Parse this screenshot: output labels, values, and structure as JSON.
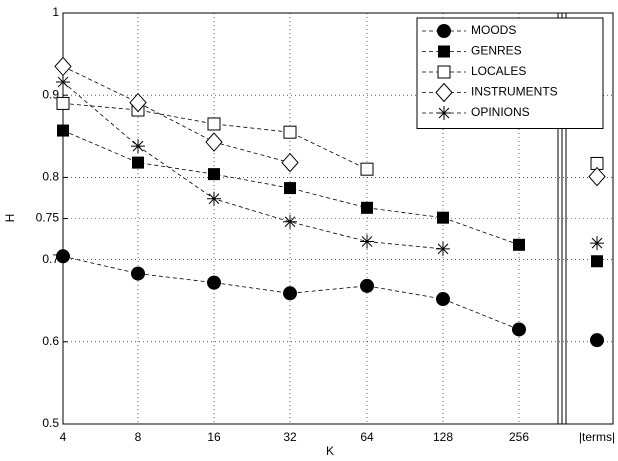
{
  "chart_data": {
    "type": "line",
    "x_label": "K",
    "y_label": "H",
    "categories": [
      "4",
      "8",
      "16",
      "32",
      "64",
      "128",
      "256",
      "|terms|"
    ],
    "ylim": [
      0.5,
      1
    ],
    "yticks": [
      {
        "value": 0.5,
        "label": "0.5"
      },
      {
        "value": 0.6,
        "label": "0.6"
      },
      {
        "value": 0.7,
        "label": "0.7"
      },
      {
        "value": 0.75,
        "label": "0.75"
      },
      {
        "value": 0.8,
        "label": "0.8"
      },
      {
        "value": 0.9,
        "label": "0.9"
      },
      1
    ],
    "grid": true,
    "legend": "top-right",
    "series": [
      {
        "name": "MOODS",
        "marker": "filled-circle",
        "color": "#000000",
        "values": [
          0.704,
          0.683,
          0.672,
          0.659,
          0.668,
          0.652,
          0.615,
          0.602
        ]
      },
      {
        "name": "GENRES",
        "marker": "filled-square",
        "color": "#000000",
        "values": [
          0.857,
          0.818,
          0.804,
          0.787,
          0.763,
          0.751,
          0.718,
          0.698
        ]
      },
      {
        "name": "LOCALES",
        "marker": "open-square",
        "color": "#000000",
        "values": [
          0.89,
          0.882,
          0.865,
          0.855,
          0.81,
          null,
          null,
          0.817
        ]
      },
      {
        "name": "INSTRUMENTS",
        "marker": "open-diamond",
        "color": "#000000",
        "values": [
          0.935,
          0.891,
          0.843,
          0.818,
          null,
          null,
          null,
          0.801
        ]
      },
      {
        "name": "OPINIONS",
        "marker": "asterisk",
        "color": "#000000",
        "values": [
          0.916,
          0.838,
          0.774,
          0.746,
          0.722,
          0.713,
          null,
          0.72
        ]
      }
    ]
  }
}
